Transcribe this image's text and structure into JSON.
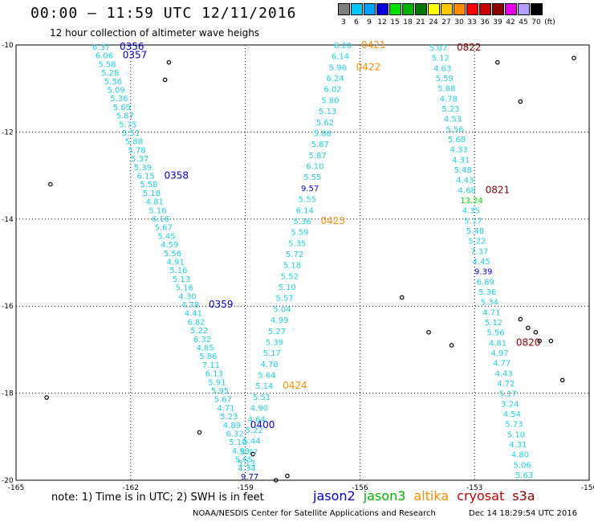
{
  "title": "00:00 – 11:59 UTC 12/11/2016",
  "subtitle": "12 hour collection of altimeter wave heighs",
  "legend": {
    "unit": "(ft)",
    "bins": [
      {
        "label": "3",
        "color": "#7f7f7f"
      },
      {
        "label": "6",
        "color": "#00c8ff"
      },
      {
        "label": "9",
        "color": "#00a0ff"
      },
      {
        "label": "12",
        "color": "#0000dc"
      },
      {
        "label": "15",
        "color": "#00e000"
      },
      {
        "label": "18",
        "color": "#00b400"
      },
      {
        "label": "21",
        "color": "#007800"
      },
      {
        "label": "24",
        "color": "#ffff00"
      },
      {
        "label": "27",
        "color": "#ffc800"
      },
      {
        "label": "30",
        "color": "#ff8c00"
      },
      {
        "label": "33",
        "color": "#ff0000"
      },
      {
        "label": "36",
        "color": "#c80000"
      },
      {
        "label": "39",
        "color": "#8c0000"
      },
      {
        "label": "42",
        "color": "#e600e6"
      },
      {
        "label": "45",
        "color": "#b4a0ff"
      },
      {
        "label": "70",
        "color": "#000000"
      }
    ]
  },
  "axes": {
    "x_ticks": [
      "-165",
      "-162",
      "-159",
      "-156",
      "-153",
      "-150"
    ],
    "y_ticks": [
      "-10",
      "-12",
      "-14",
      "-16",
      "-18",
      "-20"
    ],
    "x_range": [
      -165,
      -150
    ],
    "y_range": [
      -20,
      -10
    ]
  },
  "tracks": [
    {
      "satellite": "jason2",
      "color": "#1fd0e8",
      "values": [
        "6.37",
        "6.06",
        "5.58",
        "5.28",
        "5.56",
        "5.09",
        "5.36",
        "5.69",
        "5.87",
        "5.75",
        "5.51",
        "5.88",
        "5.78",
        "5.37",
        "5.39",
        "6.15",
        "5.58",
        "5.18",
        "4.81",
        "5.16",
        "6.16",
        "5.67",
        "5.45",
        "4.59",
        "5.56",
        "4.91",
        "5.16",
        "5.13",
        "5.16",
        "4.30",
        "4.78",
        "4.41",
        "6.82",
        "5.22",
        "6.32",
        "4.85",
        "5.86",
        "7.11",
        "6.13",
        "5.91",
        "5.95",
        "5.67",
        "4.71",
        "5.23",
        "4.89",
        "6.32",
        "5.18",
        "4.99",
        "5.65",
        "4.34",
        "9.77"
      ],
      "times": [
        {
          "label": "0356",
          "after": 0
        },
        {
          "label": "0357",
          "after": 1
        },
        {
          "label": "0358",
          "after": 15
        },
        {
          "label": "0359",
          "after": 30
        },
        {
          "label": "0400",
          "after": 44
        }
      ]
    },
    {
      "satellite": "altika",
      "color": "#1fd0e8",
      "values": [
        "6.20",
        "6.14",
        "5.96",
        "6.24",
        "6.02",
        "5.80",
        "5.13",
        "5.62",
        "5.88",
        "5.87",
        "5.87",
        "6.10",
        "5.55",
        "9.57",
        "5.55",
        "6.14",
        "5.36",
        "5.59",
        "5.35",
        "5.72",
        "5.18",
        "5.52",
        "5.10",
        "5.57",
        "5.04",
        "4.99",
        "5.27",
        "5.39",
        "5.17",
        "4.78",
        "5.64",
        "5.14",
        "5.51",
        "4.90",
        "4.64",
        "5.22",
        "5.44",
        "5.77",
        "5.13"
      ],
      "times": [
        {
          "label": "0421",
          "after": 0
        },
        {
          "label": "0422",
          "after": 2
        },
        {
          "label": "0423",
          "after": 16
        },
        {
          "label": "0424",
          "after": 31
        }
      ]
    },
    {
      "satellite": "cryosat",
      "color": "#1fd0e8",
      "values": [
        "5.07",
        "5.12",
        "4.63",
        "5.59",
        "5.88",
        "4.78",
        "5.23",
        "4.53",
        "5.56",
        "5.68",
        "4.33",
        "4.31",
        "5.48",
        "4.43",
        "4.68",
        "13.24",
        "4.35",
        "5.17",
        "5.48",
        "5.22",
        "7.37",
        "4.45",
        "9.39",
        "6.89",
        "5.36",
        "5.34",
        "4.71",
        "5.12",
        "5.56",
        "4.81",
        "4.97",
        "4.77",
        "4.43",
        "4.72",
        "5.17",
        "3.24",
        "4.54",
        "5.73",
        "5.10",
        "4.31",
        "4.80",
        "5.06",
        "5.63"
      ],
      "times": [
        {
          "label": "0822",
          "after": 0
        },
        {
          "label": "0821",
          "after": 14
        },
        {
          "label": "0820",
          "after": 29
        }
      ]
    }
  ],
  "note": "note:  1) Time is in UTC;  2) SWH is in feet",
  "satellites": [
    {
      "name": "jason2",
      "color": "#0000dc"
    },
    {
      "name": "jason3",
      "color": "#00b400"
    },
    {
      "name": "altika",
      "color": "#ff8c00"
    },
    {
      "name": "cryosat",
      "color": "#c80000"
    },
    {
      "name": "s3a",
      "color": "#8c0000"
    }
  ],
  "credit": "NOAA/NESDIS Center for Satellite Applications and Research",
  "stamp": "Dec 14 18:29:54 UTC 2016"
}
